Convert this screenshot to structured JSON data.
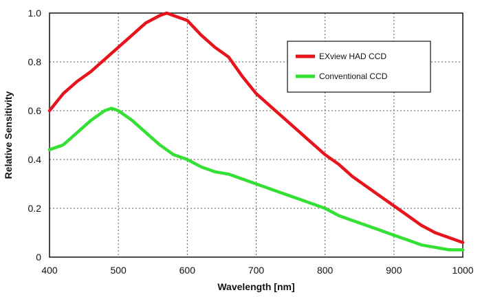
{
  "chart_data": {
    "type": "line",
    "title": "",
    "xlabel": "Wavelength [nm]",
    "ylabel": "Relative Sensitivity",
    "xlim": [
      400,
      1000
    ],
    "ylim": [
      0,
      1.0
    ],
    "x_ticks": [
      400,
      500,
      600,
      700,
      800,
      900,
      1000
    ],
    "y_ticks": [
      0,
      0.2,
      0.4,
      0.6,
      0.8,
      1.0
    ],
    "x_tick_labels": [
      "400",
      "500",
      "600",
      "700",
      "800",
      "900",
      "1000"
    ],
    "y_tick_labels": [
      "0",
      "0.2",
      "0.4",
      "0.6",
      "0.8",
      "1.0"
    ],
    "grid": true,
    "legend_position": "top-right",
    "series": [
      {
        "name": "EXview HAD CCD",
        "color": "#e8141c",
        "x": [
          400,
          420,
          440,
          460,
          480,
          500,
          520,
          540,
          560,
          570,
          580,
          600,
          620,
          640,
          660,
          680,
          700,
          720,
          740,
          760,
          780,
          800,
          820,
          840,
          860,
          880,
          900,
          920,
          940,
          960,
          980,
          1000
        ],
        "y": [
          0.6,
          0.67,
          0.72,
          0.76,
          0.81,
          0.86,
          0.91,
          0.96,
          0.99,
          1.0,
          0.99,
          0.97,
          0.91,
          0.86,
          0.82,
          0.74,
          0.67,
          0.62,
          0.57,
          0.52,
          0.47,
          0.42,
          0.38,
          0.33,
          0.29,
          0.25,
          0.21,
          0.17,
          0.13,
          0.1,
          0.08,
          0.06
        ]
      },
      {
        "name": "Conventional CCD",
        "color": "#33e033",
        "x": [
          400,
          420,
          440,
          460,
          480,
          490,
          500,
          520,
          540,
          560,
          580,
          600,
          620,
          640,
          660,
          680,
          700,
          720,
          740,
          760,
          780,
          800,
          820,
          840,
          860,
          880,
          900,
          920,
          940,
          960,
          980,
          1000
        ],
        "y": [
          0.44,
          0.46,
          0.51,
          0.56,
          0.6,
          0.61,
          0.6,
          0.56,
          0.51,
          0.46,
          0.42,
          0.4,
          0.37,
          0.35,
          0.34,
          0.32,
          0.3,
          0.28,
          0.26,
          0.24,
          0.22,
          0.2,
          0.17,
          0.15,
          0.13,
          0.11,
          0.09,
          0.07,
          0.05,
          0.04,
          0.03,
          0.03
        ]
      }
    ]
  }
}
